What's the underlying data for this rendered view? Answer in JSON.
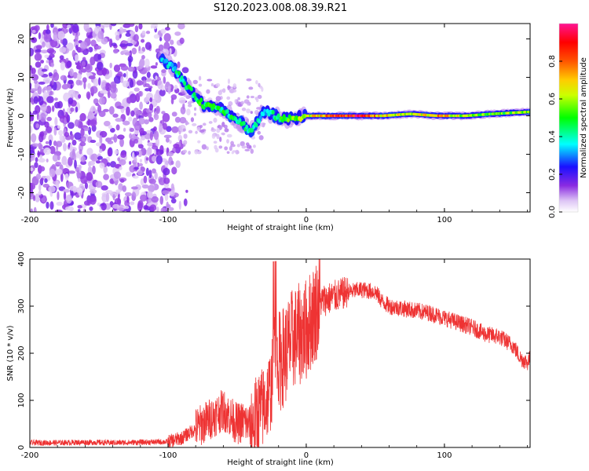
{
  "title": "S120.2023.008.08.39.R21",
  "chart_data": [
    {
      "type": "heatmap",
      "xlabel": "Height of straight line (km)",
      "ylabel": "Frequency (Hz)",
      "xlim": [
        -200,
        162
      ],
      "ylim": [
        -25,
        24
      ],
      "xticks": [
        -200,
        -100,
        0,
        100
      ],
      "yticks": [
        -20,
        -10,
        0,
        10,
        20
      ],
      "colorbar": {
        "label": "Normalized spectral amplitude",
        "range": [
          0,
          1
        ],
        "ticks": [
          0.0,
          0.2,
          0.4,
          0.6,
          0.8
        ],
        "colormap": [
          "#ffffff",
          "#8a2be2",
          "#0000ff",
          "#00ffff",
          "#00ff00",
          "#ffff00",
          "#ff8000",
          "#ff0000",
          "#ff1493"
        ]
      },
      "ridge": [
        {
          "x": -105,
          "y": 15,
          "v": 0.35
        },
        {
          "x": -95,
          "y": 12,
          "v": 0.4
        },
        {
          "x": -85,
          "y": 7,
          "v": 0.45
        },
        {
          "x": -75,
          "y": 3,
          "v": 0.5
        },
        {
          "x": -62,
          "y": 2,
          "v": 0.45
        },
        {
          "x": -50,
          "y": -1,
          "v": 0.45
        },
        {
          "x": -40,
          "y": -4,
          "v": 0.4
        },
        {
          "x": -30,
          "y": 1,
          "v": 0.35
        },
        {
          "x": -15,
          "y": -1,
          "v": 0.5
        },
        {
          "x": 0,
          "y": 0,
          "v": 0.6
        },
        {
          "x": 15,
          "y": 0,
          "v": 0.8
        },
        {
          "x": 35,
          "y": 0,
          "v": 0.95
        },
        {
          "x": 55,
          "y": 0,
          "v": 0.7
        },
        {
          "x": 75,
          "y": 0.5,
          "v": 0.6
        },
        {
          "x": 95,
          "y": 0,
          "v": 0.75
        },
        {
          "x": 115,
          "y": 0,
          "v": 0.6
        },
        {
          "x": 135,
          "y": 0.5,
          "v": 0.55
        },
        {
          "x": 160,
          "y": 1,
          "v": 0.6
        }
      ]
    },
    {
      "type": "line",
      "xlabel": "Height of straight line (km)",
      "ylabel": "SNR (10 * v/v)",
      "xlim": [
        -200,
        162
      ],
      "ylim": [
        0,
        400
      ],
      "xticks": [
        -200,
        -100,
        0,
        100
      ],
      "yticks": [
        0,
        100,
        200,
        300,
        400
      ],
      "color": "#ee3333",
      "series": [
        {
          "x": [
            -200,
            -180,
            -160,
            -140,
            -120,
            -100,
            -90,
            -80,
            -70,
            -60,
            -50,
            -45,
            -40,
            -35,
            -30,
            -25,
            -22,
            -20,
            -15,
            -10,
            -5,
            0,
            5,
            10,
            20,
            30,
            40,
            50,
            55,
            60,
            70,
            80,
            90,
            100,
            110,
            120,
            130,
            140,
            150,
            155,
            160,
            162
          ],
          "values": [
            10,
            10,
            11,
            10,
            11,
            12,
            20,
            40,
            60,
            80,
            50,
            55,
            45,
            70,
            90,
            130,
            240,
            180,
            200,
            230,
            240,
            250,
            280,
            310,
            320,
            330,
            335,
            330,
            310,
            300,
            295,
            290,
            285,
            275,
            265,
            255,
            240,
            235,
            215,
            190,
            180,
            190
          ]
        }
      ]
    }
  ]
}
